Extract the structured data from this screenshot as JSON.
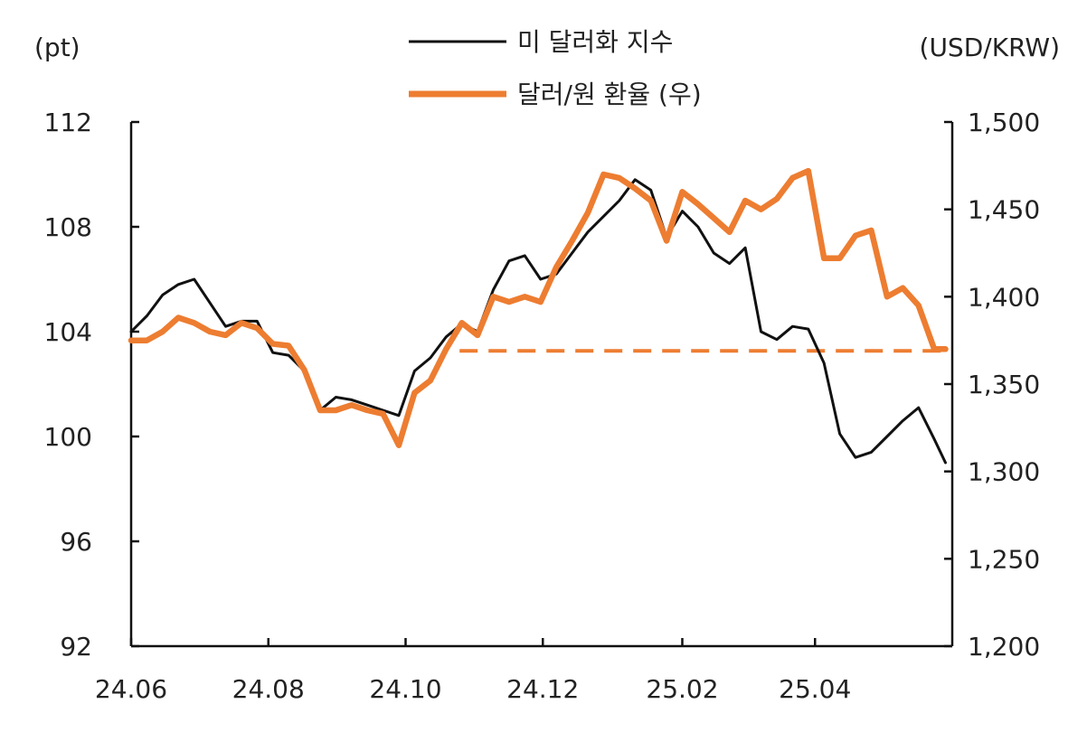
{
  "chart_data": {
    "type": "line",
    "left_axis_unit": "(pt)",
    "right_axis_unit": "(USD/KRW)",
    "left_ylim": [
      92,
      112
    ],
    "right_ylim": [
      1200,
      1500
    ],
    "left_yticks": [
      "112",
      "108",
      "104",
      "100",
      "96",
      "92"
    ],
    "right_yticks": [
      "1,500",
      "1,450",
      "1,400",
      "1,350",
      "1,300",
      "1,250",
      "1,200"
    ],
    "x_tick_labels": [
      "24.06",
      "24.08",
      "24.10",
      "24.12",
      "25.02",
      "25.04"
    ],
    "x_range": [
      "2024-06-01",
      "2025-06-01"
    ],
    "x_ticks": [
      "2024-06-01",
      "2024-08-01",
      "2024-10-01",
      "2024-12-01",
      "2025-02-01",
      "2025-04-01"
    ],
    "grid": false,
    "legend_position": "top-center",
    "series": [
      {
        "name": "미 달러화 지수",
        "axis": "left",
        "color": "#111111",
        "points": [
          [
            "2024-06-01",
            104.0
          ],
          [
            "2024-06-08",
            104.6
          ],
          [
            "2024-06-15",
            105.4
          ],
          [
            "2024-06-22",
            105.8
          ],
          [
            "2024-06-29",
            106.0
          ],
          [
            "2024-07-06",
            105.1
          ],
          [
            "2024-07-13",
            104.2
          ],
          [
            "2024-07-20",
            104.4
          ],
          [
            "2024-07-27",
            104.4
          ],
          [
            "2024-08-03",
            103.2
          ],
          [
            "2024-08-10",
            103.1
          ],
          [
            "2024-08-17",
            102.5
          ],
          [
            "2024-08-24",
            101.0
          ],
          [
            "2024-08-31",
            101.5
          ],
          [
            "2024-09-07",
            101.4
          ],
          [
            "2024-09-14",
            101.2
          ],
          [
            "2024-09-21",
            101.0
          ],
          [
            "2024-09-28",
            100.8
          ],
          [
            "2024-10-05",
            102.5
          ],
          [
            "2024-10-12",
            103.0
          ],
          [
            "2024-10-19",
            103.8
          ],
          [
            "2024-10-26",
            104.3
          ],
          [
            "2024-11-02",
            104.0
          ],
          [
            "2024-11-09",
            105.6
          ],
          [
            "2024-11-16",
            106.7
          ],
          [
            "2024-11-23",
            106.9
          ],
          [
            "2024-11-30",
            106.0
          ],
          [
            "2024-12-07",
            106.2
          ],
          [
            "2024-12-14",
            107.0
          ],
          [
            "2024-12-21",
            107.8
          ],
          [
            "2024-12-28",
            108.4
          ],
          [
            "2025-01-04",
            109.0
          ],
          [
            "2025-01-11",
            109.8
          ],
          [
            "2025-01-18",
            109.4
          ],
          [
            "2025-01-25",
            107.6
          ],
          [
            "2025-02-01",
            108.6
          ],
          [
            "2025-02-08",
            108.0
          ],
          [
            "2025-02-15",
            107.0
          ],
          [
            "2025-02-22",
            106.6
          ],
          [
            "2025-03-01",
            107.2
          ],
          [
            "2025-03-08",
            104.0
          ],
          [
            "2025-03-15",
            103.7
          ],
          [
            "2025-03-22",
            104.2
          ],
          [
            "2025-03-29",
            104.1
          ],
          [
            "2025-04-05",
            102.8
          ],
          [
            "2025-04-12",
            100.1
          ],
          [
            "2025-04-19",
            99.2
          ],
          [
            "2025-04-26",
            99.4
          ],
          [
            "2025-05-03",
            100.0
          ],
          [
            "2025-05-10",
            100.6
          ],
          [
            "2025-05-17",
            101.1
          ],
          [
            "2025-05-24",
            99.9
          ],
          [
            "2025-05-29",
            99.0
          ]
        ]
      },
      {
        "name": "달러/원 환율 (우)",
        "axis": "right",
        "color": "#ED7D31",
        "points": [
          [
            "2024-06-01",
            1375
          ],
          [
            "2024-06-08",
            1375
          ],
          [
            "2024-06-15",
            1380
          ],
          [
            "2024-06-22",
            1388
          ],
          [
            "2024-06-29",
            1385
          ],
          [
            "2024-07-06",
            1380
          ],
          [
            "2024-07-13",
            1378
          ],
          [
            "2024-07-20",
            1385
          ],
          [
            "2024-07-27",
            1382
          ],
          [
            "2024-08-03",
            1373
          ],
          [
            "2024-08-10",
            1372
          ],
          [
            "2024-08-17",
            1358
          ],
          [
            "2024-08-24",
            1335
          ],
          [
            "2024-08-31",
            1335
          ],
          [
            "2024-09-07",
            1338
          ],
          [
            "2024-09-14",
            1335
          ],
          [
            "2024-09-21",
            1333
          ],
          [
            "2024-09-28",
            1315
          ],
          [
            "2024-10-05",
            1345
          ],
          [
            "2024-10-12",
            1352
          ],
          [
            "2024-10-19",
            1370
          ],
          [
            "2024-10-26",
            1385
          ],
          [
            "2024-11-02",
            1378
          ],
          [
            "2024-11-09",
            1400
          ],
          [
            "2024-11-16",
            1397
          ],
          [
            "2024-11-23",
            1400
          ],
          [
            "2024-11-30",
            1397
          ],
          [
            "2024-12-07",
            1417
          ],
          [
            "2024-12-14",
            1432
          ],
          [
            "2024-12-21",
            1448
          ],
          [
            "2024-12-28",
            1470
          ],
          [
            "2025-01-04",
            1468
          ],
          [
            "2025-01-11",
            1462
          ],
          [
            "2025-01-18",
            1455
          ],
          [
            "2025-01-25",
            1432
          ],
          [
            "2025-02-01",
            1460
          ],
          [
            "2025-02-08",
            1453
          ],
          [
            "2025-02-15",
            1445
          ],
          [
            "2025-02-22",
            1437
          ],
          [
            "2025-03-01",
            1455
          ],
          [
            "2025-03-08",
            1450
          ],
          [
            "2025-03-15",
            1456
          ],
          [
            "2025-03-22",
            1468
          ],
          [
            "2025-03-29",
            1472
          ],
          [
            "2025-04-05",
            1422
          ],
          [
            "2025-04-12",
            1422
          ],
          [
            "2025-04-19",
            1435
          ],
          [
            "2025-04-26",
            1438
          ],
          [
            "2025-05-03",
            1400
          ],
          [
            "2025-05-10",
            1405
          ],
          [
            "2025-05-17",
            1395
          ],
          [
            "2025-05-24",
            1370
          ],
          [
            "2025-05-29",
            1370
          ]
        ]
      }
    ],
    "reference_line": {
      "axis": "right",
      "value": 1369,
      "from": "2024-10-25",
      "to": "2025-05-29",
      "style": "dashed",
      "color": "#ED7D31"
    }
  }
}
